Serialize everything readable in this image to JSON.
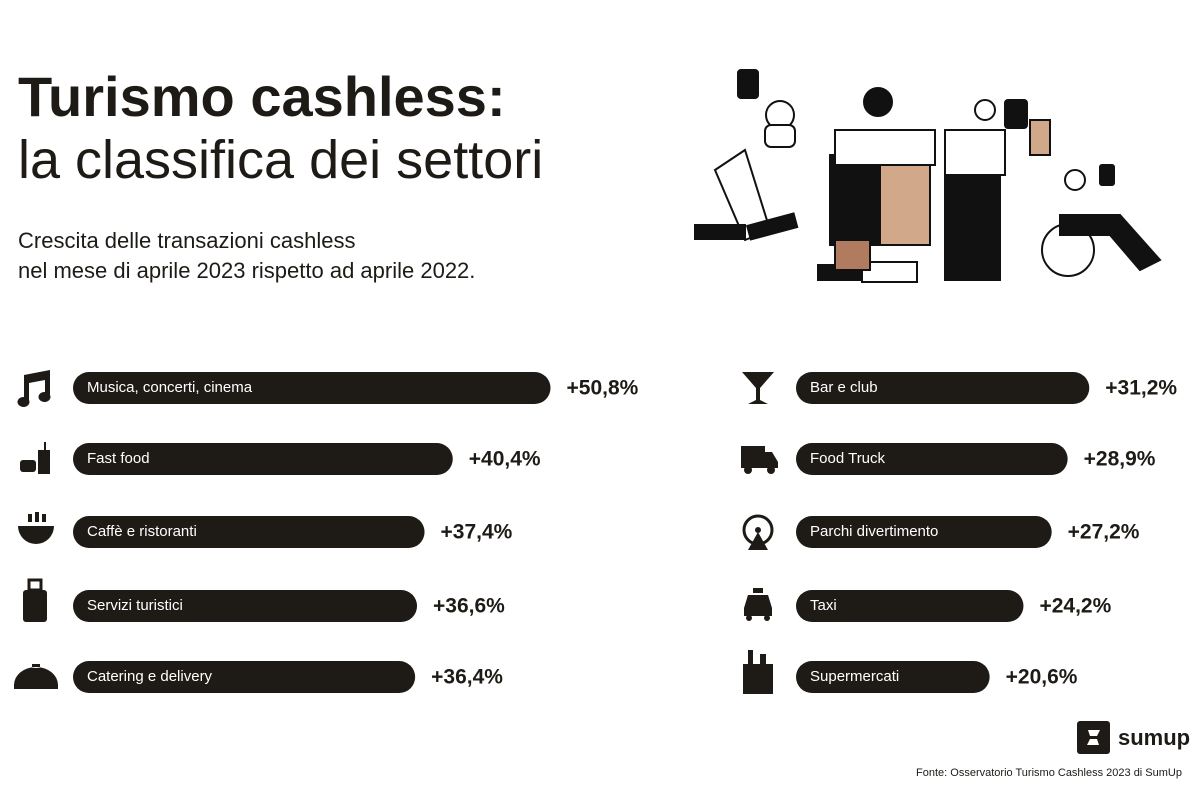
{
  "chart_data": {
    "type": "bar",
    "title": "Turismo cashless:",
    "subtitle": "la classifica dei settori",
    "description": [
      "Crescita delle transazioni cashless",
      "nel mese di aprile 2023 rispetto ad aprile 2022."
    ],
    "categories": [
      "Musica, concerti, cinema",
      "Fast food",
      "Caffè e ristoranti",
      "Servizi turistici",
      "Catering e delivery",
      "Bar e club",
      "Food Truck",
      "Parchi divertimento",
      "Taxi",
      "Supermercati"
    ],
    "values": [
      50.8,
      40.4,
      37.4,
      36.6,
      36.4,
      31.2,
      28.9,
      27.2,
      24.2,
      20.6
    ],
    "value_labels": [
      "+50,8%",
      "+40,4%",
      "+37,4%",
      "+36,6%",
      "+36,4%",
      "+31,2%",
      "+28,9%",
      "+27,2%",
      "+24,2%",
      "+20,6%"
    ],
    "color": "#1e1b16",
    "logo": "sumup",
    "source": "Fonte: Osservatorio Turismo Cashless 2023 di SumUp"
  }
}
